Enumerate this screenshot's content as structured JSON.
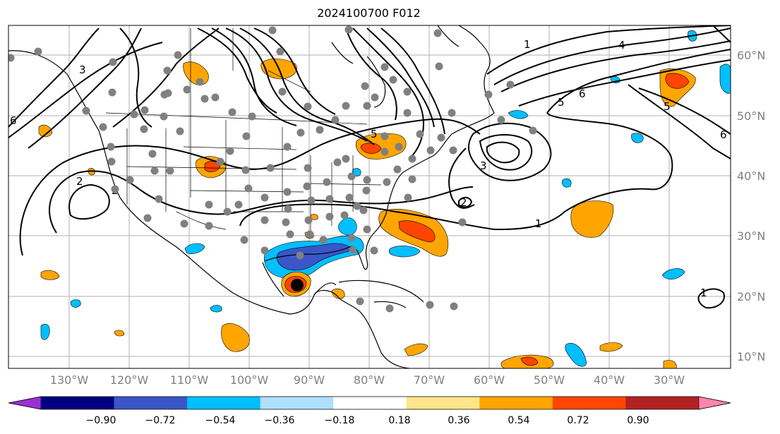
{
  "title": "2024100700 F012",
  "lon_labels": [
    "130°W",
    "120°W",
    "110°W",
    "100°W",
    "90°W",
    "80°W",
    "70°W",
    "60°W",
    "50°W",
    "40°W",
    "30°W"
  ],
  "lat_labels": [
    "60°N",
    "50°N",
    "40°N",
    "30°N",
    "20°N",
    "10°N"
  ],
  "colorbar": {
    "ticks": [
      "−0.90",
      "−0.72",
      "−0.54",
      "−0.36",
      "−0.18",
      "0.18",
      "0.36",
      "0.54",
      "0.72",
      "0.90"
    ],
    "colors": [
      "#9b30d0",
      "#000080",
      "#3a56c8",
      "#00bfff",
      "#b0e0ff",
      "#ffffff",
      "#ffe58a",
      "#ffa500",
      "#ff4500",
      "#b22222",
      "#ff85b0"
    ]
  },
  "contour_labels": [
    "1",
    "2",
    "3",
    "4",
    "5",
    "6"
  ],
  "colors": {
    "contour": "#000000",
    "station": "#808080",
    "storm_center": "#000000",
    "grid": "#b0b0b0",
    "coast": "#000000"
  }
}
